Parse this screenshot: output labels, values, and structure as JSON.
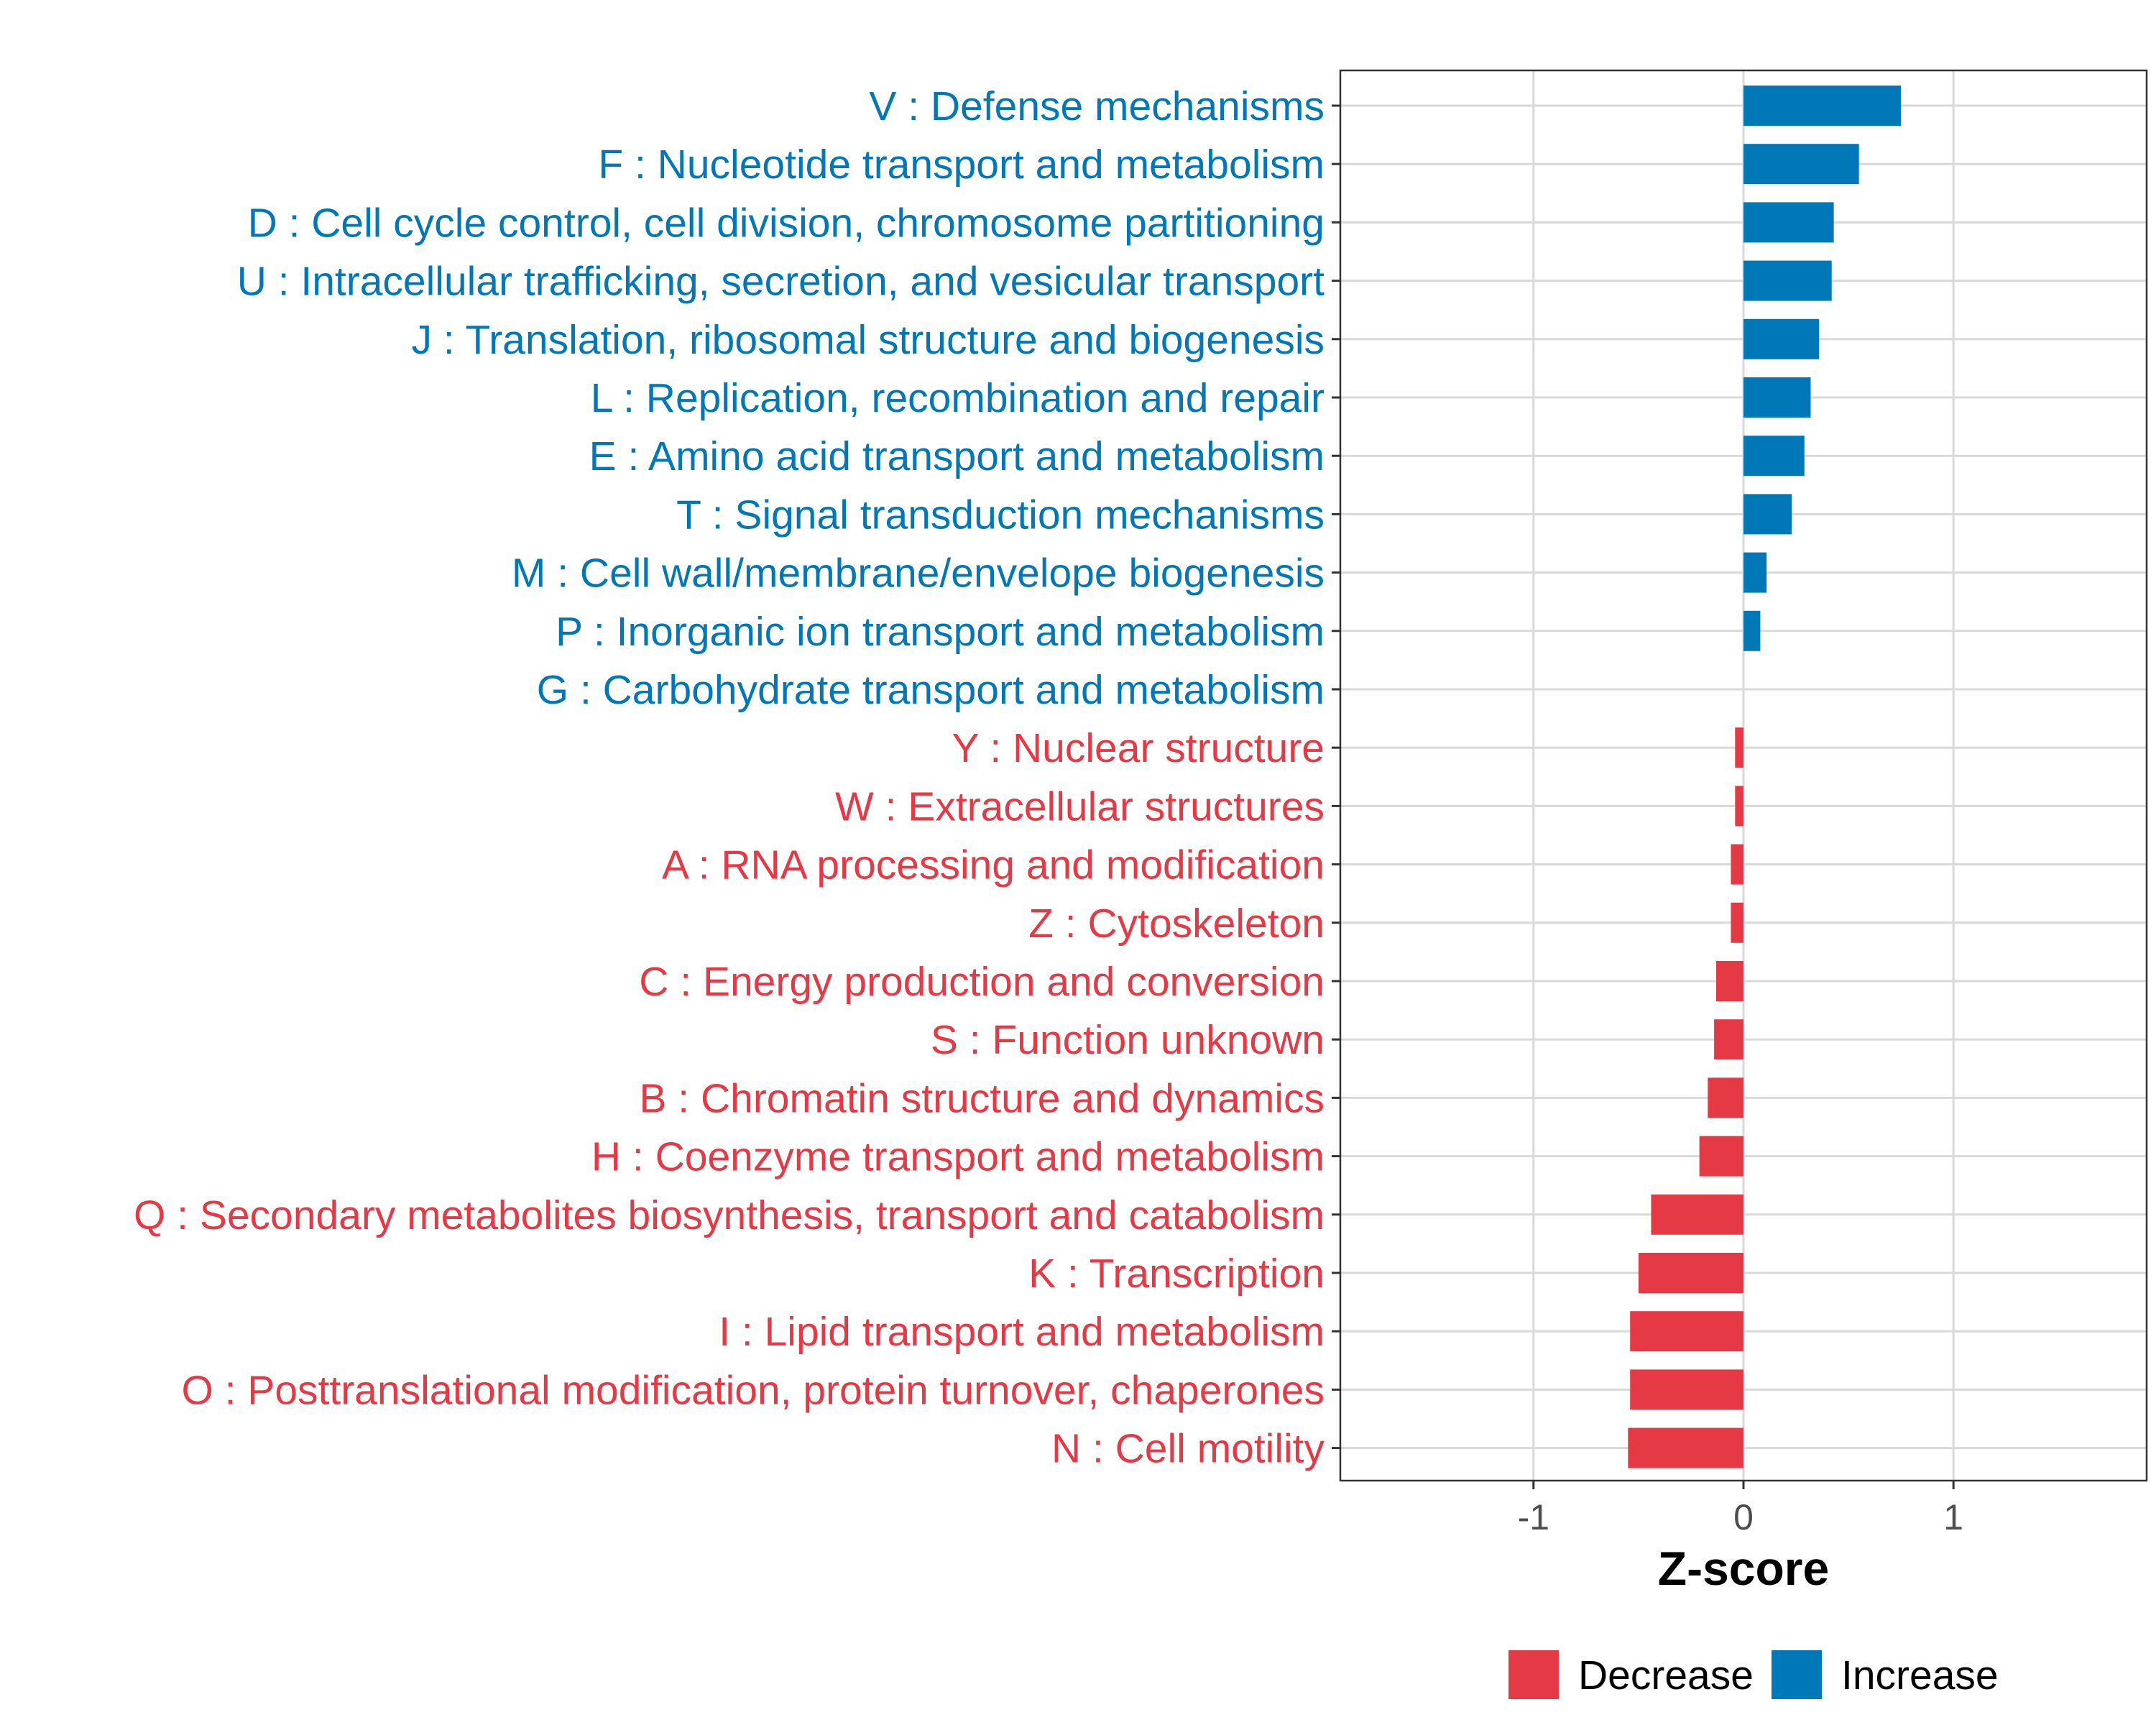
{
  "chart_data": {
    "type": "bar",
    "orientation": "horizontal",
    "title": "",
    "xlabel": "Z-score",
    "ylabel": "",
    "xlim": [
      -1.92,
      1.92
    ],
    "xticks": [
      -1,
      0,
      1
    ],
    "xtick_labels": [
      "-1",
      "0",
      "1"
    ],
    "grid": true,
    "legend_position": "bottom",
    "colors": {
      "Decrease": "#e63946",
      "Increase": "#0077b6"
    },
    "categories": [
      "V : Defense mechanisms",
      "F : Nucleotide transport and metabolism",
      "D : Cell cycle control, cell division, chromosome partitioning",
      "U : Intracellular trafficking, secretion, and vesicular transport",
      "J : Translation, ribosomal structure and biogenesis",
      "L : Replication, recombination and repair",
      "E : Amino acid transport and metabolism",
      "T : Signal transduction mechanisms",
      "M : Cell wall/membrane/envelope biogenesis",
      "P : Inorganic ion transport and metabolism",
      "G : Carbohydrate transport and metabolism",
      "Y : Nuclear structure",
      "W : Extracellular structures",
      "A : RNA processing and modification",
      "Z : Cytoskeleton",
      "C : Energy production and conversion",
      "S : Function unknown",
      "B : Chromatin structure and dynamics",
      "H : Coenzyme transport and metabolism",
      "Q : Secondary metabolites biosynthesis, transport and catabolism",
      "K : Transcription",
      "I : Lipid transport and metabolism",
      "O : Posttranslational modification, protein turnover, chaperones",
      "N : Cell motility"
    ],
    "values": [
      0.75,
      0.55,
      0.43,
      0.42,
      0.36,
      0.32,
      0.29,
      0.23,
      0.11,
      0.08,
      0.0,
      -0.04,
      -0.04,
      -0.06,
      -0.06,
      -0.13,
      -0.14,
      -0.17,
      -0.21,
      -0.44,
      -0.5,
      -0.54,
      -0.54,
      -0.55
    ],
    "groups": [
      "Increase",
      "Increase",
      "Increase",
      "Increase",
      "Increase",
      "Increase",
      "Increase",
      "Increase",
      "Increase",
      "Increase",
      "Increase",
      "Decrease",
      "Decrease",
      "Decrease",
      "Decrease",
      "Decrease",
      "Decrease",
      "Decrease",
      "Decrease",
      "Decrease",
      "Decrease",
      "Decrease",
      "Decrease",
      "Decrease"
    ],
    "legend": [
      {
        "name": "Decrease",
        "color": "#e63946"
      },
      {
        "name": "Increase",
        "color": "#0077b6"
      }
    ]
  }
}
